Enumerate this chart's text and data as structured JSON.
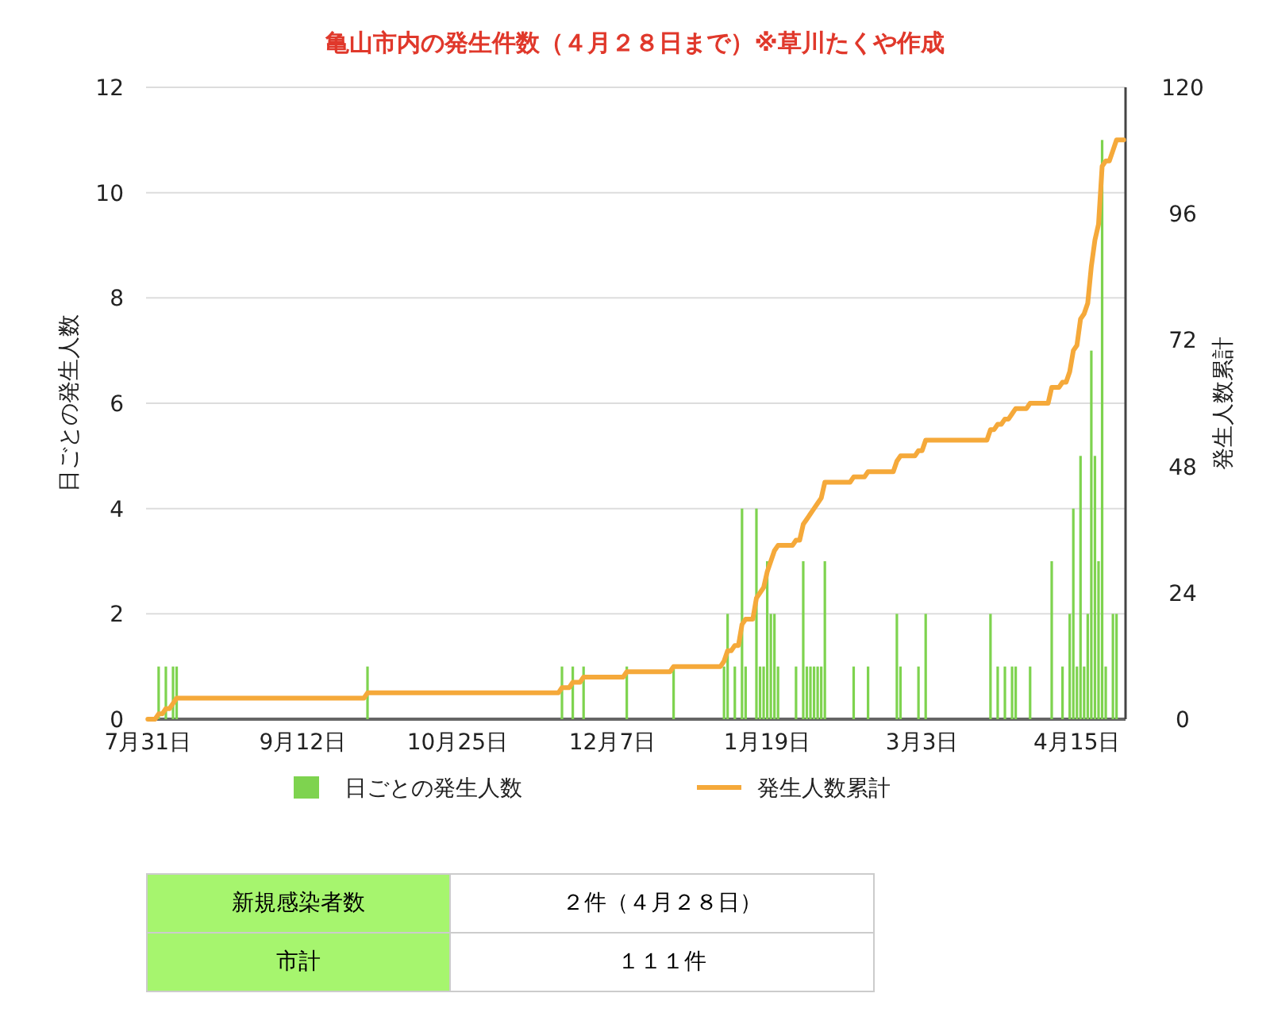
{
  "chart_data": {
    "type": "bar",
    "title": "亀山市内の発生件数（４月２８日まで）※草川たくや作成",
    "ylabel": "日ごとの発生人数",
    "y2label": "発生人数累計",
    "categories": [
      "7月31日",
      null,
      null,
      null,
      null,
      null,
      null,
      null,
      null,
      null,
      null,
      null,
      null,
      null,
      null,
      null,
      null,
      null,
      null,
      null,
      null,
      null,
      null,
      null,
      null,
      null,
      null,
      null,
      null,
      null,
      null,
      null,
      null,
      null,
      null,
      null,
      null,
      null,
      null,
      null,
      null,
      null,
      null,
      "9月12日",
      null,
      null,
      null,
      null,
      null,
      null,
      null,
      null,
      null,
      null,
      null,
      null,
      null,
      null,
      null,
      null,
      null,
      null,
      null,
      null,
      null,
      null,
      null,
      null,
      null,
      null,
      null,
      null,
      null,
      null,
      null,
      null,
      null,
      null,
      null,
      null,
      null,
      null,
      null,
      null,
      null,
      null,
      "10月25日",
      null,
      null,
      null,
      null,
      null,
      null,
      null,
      null,
      null,
      null,
      null,
      null,
      null,
      null,
      null,
      null,
      null,
      null,
      null,
      null,
      null,
      null,
      null,
      null,
      null,
      null,
      null,
      null,
      null,
      null,
      null,
      null,
      null,
      null,
      null,
      null,
      null,
      null,
      null,
      null,
      null,
      null,
      "12月7日",
      null,
      null,
      null,
      null,
      null,
      null,
      null,
      null,
      null,
      null,
      null,
      null,
      null,
      null,
      null,
      null,
      null,
      null,
      null,
      null,
      null,
      null,
      null,
      null,
      null,
      null,
      null,
      null,
      null,
      null,
      null,
      null,
      null,
      null,
      null,
      null,
      null,
      null,
      null,
      null,
      null,
      null,
      "1月19日",
      null,
      null,
      null,
      null,
      null,
      null,
      null,
      null,
      null,
      null,
      null,
      null,
      null,
      null,
      null,
      null,
      null,
      null,
      null,
      null,
      null,
      null,
      null,
      null,
      null,
      null,
      null,
      null,
      null,
      null,
      null,
      null,
      null,
      null,
      null,
      null,
      null,
      null,
      null,
      null,
      null,
      null,
      "3月3日",
      null,
      null,
      null,
      null,
      null,
      null,
      null,
      null,
      null,
      null,
      null,
      null,
      null,
      null,
      null,
      null,
      null,
      null,
      null,
      null,
      null,
      null,
      null,
      null,
      null,
      null,
      null,
      null,
      null,
      null,
      null,
      null,
      null,
      null,
      null,
      null,
      null,
      null,
      null,
      null,
      null,
      null,
      "4月15日",
      null,
      null,
      null,
      null,
      null,
      null,
      null,
      null,
      null,
      null,
      null,
      null,
      null
    ],
    "ylim": [
      0,
      12
    ],
    "yticks": [
      0,
      2,
      4,
      6,
      8,
      10,
      12
    ],
    "y2lim": [
      0,
      120
    ],
    "y2ticks": [
      0,
      24,
      48,
      72,
      96,
      120
    ],
    "grid": "y",
    "legend": "bottom",
    "series": [
      {
        "name": "日ごとの発生人数",
        "color": "#7ed34f",
        "values": [
          0,
          0,
          0,
          1,
          0,
          1,
          0,
          1,
          1,
          0,
          0,
          0,
          0,
          0,
          0,
          0,
          0,
          0,
          0,
          0,
          0,
          0,
          0,
          0,
          0,
          0,
          0,
          0,
          0,
          0,
          0,
          0,
          0,
          0,
          0,
          0,
          0,
          0,
          0,
          0,
          0,
          0,
          0,
          0,
          0,
          0,
          0,
          0,
          0,
          0,
          0,
          0,
          0,
          0,
          0,
          0,
          0,
          0,
          0,
          0,
          0,
          1,
          0,
          0,
          0,
          0,
          0,
          0,
          0,
          0,
          0,
          0,
          0,
          0,
          0,
          0,
          0,
          0,
          0,
          0,
          0,
          0,
          0,
          0,
          0,
          0,
          0,
          0,
          0,
          0,
          0,
          0,
          0,
          0,
          0,
          0,
          0,
          0,
          0,
          0,
          0,
          0,
          0,
          0,
          0,
          0,
          0,
          0,
          0,
          0,
          0,
          0,
          0,
          0,
          0,
          1,
          0,
          0,
          1,
          0,
          0,
          1,
          0,
          0,
          0,
          0,
          0,
          0,
          0,
          0,
          0,
          0,
          0,
          1,
          0,
          0,
          0,
          0,
          0,
          0,
          0,
          0,
          0,
          0,
          0,
          0,
          1,
          0,
          0,
          0,
          0,
          0,
          0,
          0,
          0,
          0,
          0,
          0,
          0,
          0,
          1,
          2,
          0,
          1,
          0,
          4,
          1,
          0,
          0,
          4,
          1,
          1,
          3,
          2,
          2,
          1,
          0,
          0,
          0,
          0,
          1,
          0,
          3,
          1,
          1,
          1,
          1,
          1,
          3,
          0,
          0,
          0,
          0,
          0,
          0,
          0,
          1,
          0,
          0,
          0,
          1,
          0,
          0,
          0,
          0,
          0,
          0,
          0,
          2,
          1,
          0,
          0,
          0,
          0,
          1,
          0,
          2,
          0,
          0,
          0,
          0,
          0,
          0,
          0,
          0,
          0,
          0,
          0,
          0,
          0,
          0,
          0,
          0,
          0,
          2,
          0,
          1,
          0,
          1,
          0,
          1,
          1,
          0,
          0,
          0,
          1,
          0,
          0,
          0,
          0,
          0,
          3,
          0,
          0,
          1,
          0,
          2,
          4,
          1,
          5,
          1,
          2,
          7,
          5,
          3,
          11,
          1,
          0,
          2,
          2,
          0,
          0
        ]
      },
      {
        "name": "発生人数累計",
        "type": "line",
        "axis": "y2",
        "color": "#f5a93a",
        "values": [
          0,
          0,
          0,
          1,
          1,
          2,
          2,
          3,
          4,
          4,
          4,
          4,
          4,
          4,
          4,
          4,
          4,
          4,
          4,
          4,
          4,
          4,
          4,
          4,
          4,
          4,
          4,
          4,
          4,
          4,
          4,
          4,
          4,
          4,
          4,
          4,
          4,
          4,
          4,
          4,
          4,
          4,
          4,
          4,
          4,
          4,
          4,
          4,
          4,
          4,
          4,
          4,
          4,
          4,
          4,
          4,
          4,
          4,
          4,
          4,
          4,
          5,
          5,
          5,
          5,
          5,
          5,
          5,
          5,
          5,
          5,
          5,
          5,
          5,
          5,
          5,
          5,
          5,
          5,
          5,
          5,
          5,
          5,
          5,
          5,
          5,
          5,
          5,
          5,
          5,
          5,
          5,
          5,
          5,
          5,
          5,
          5,
          5,
          5,
          5,
          5,
          5,
          5,
          5,
          5,
          5,
          5,
          5,
          5,
          5,
          5,
          5,
          5,
          5,
          5,
          6,
          6,
          6,
          7,
          7,
          7,
          8,
          8,
          8,
          8,
          8,
          8,
          8,
          8,
          8,
          8,
          8,
          8,
          9,
          9,
          9,
          9,
          9,
          9,
          9,
          9,
          9,
          9,
          9,
          9,
          9,
          10,
          10,
          10,
          10,
          10,
          10,
          10,
          10,
          10,
          10,
          10,
          10,
          10,
          10,
          11,
          13,
          13,
          14,
          14,
          18,
          19,
          19,
          19,
          23,
          24,
          25,
          28,
          30,
          32,
          33,
          33,
          33,
          33,
          33,
          34,
          34,
          37,
          38,
          39,
          40,
          41,
          42,
          45,
          45,
          45,
          45,
          45,
          45,
          45,
          45,
          46,
          46,
          46,
          46,
          47,
          47,
          47,
          47,
          47,
          47,
          47,
          47,
          49,
          50,
          50,
          50,
          50,
          50,
          51,
          51,
          53,
          53,
          53,
          53,
          53,
          53,
          53,
          53,
          53,
          53,
          53,
          53,
          53,
          53,
          53,
          53,
          53,
          53,
          55,
          55,
          56,
          56,
          57,
          57,
          58,
          59,
          59,
          59,
          59,
          60,
          60,
          60,
          60,
          60,
          60,
          63,
          63,
          63,
          64,
          64,
          66,
          70,
          71,
          76,
          77,
          79,
          86,
          91,
          94,
          105,
          106,
          106,
          108,
          110,
          110,
          110
        ]
      }
    ],
    "annotations": [
      "新規感染者数",
      "２件（４月２８日）",
      "市計",
      "１１１件"
    ]
  }
}
